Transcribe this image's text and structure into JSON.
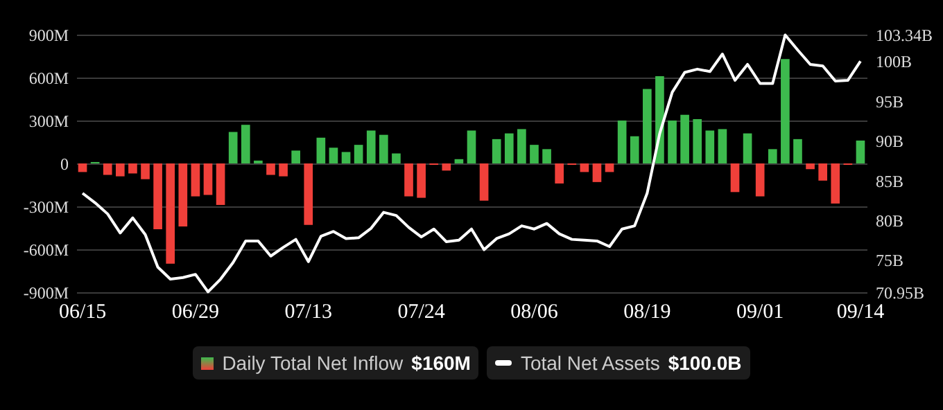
{
  "chart_data": {
    "type": "bar",
    "categories": [
      "06/15",
      null,
      null,
      null,
      null,
      null,
      null,
      null,
      null,
      "06/29",
      null,
      null,
      null,
      null,
      null,
      null,
      null,
      null,
      "07/13",
      null,
      null,
      null,
      null,
      null,
      null,
      null,
      null,
      "07/24",
      null,
      null,
      null,
      null,
      null,
      null,
      null,
      null,
      "08/06",
      null,
      null,
      null,
      null,
      null,
      null,
      null,
      null,
      "08/19",
      null,
      null,
      null,
      null,
      null,
      null,
      null,
      null,
      "09/01",
      null,
      null,
      null,
      null,
      null,
      null,
      null,
      "09/14"
    ],
    "series": [
      {
        "name": "Daily Total Net Inflow $160M",
        "colors": [
          "#f0403a",
          "#3dba4e",
          "#f0403a",
          "#f0403a",
          "#f0403a",
          "#f0403a",
          "#f0403a",
          "#f0403a",
          "#f0403a",
          "#f0403a",
          "#f0403a",
          "#f0403a",
          "#3dba4e",
          "#3dba4e",
          "#3dba4e",
          "#f0403a",
          "#f0403a",
          "#3dba4e",
          "#f0403a",
          "#3dba4e",
          "#3dba4e",
          "#3dba4e",
          "#3dba4e",
          "#3dba4e",
          "#3dba4e",
          "#3dba4e",
          "#f0403a",
          "#f0403a",
          "#f0403a",
          "#f0403a",
          "#3dba4e",
          "#3dba4e",
          "#f0403a",
          "#3dba4e",
          "#3dba4e",
          "#3dba4e",
          "#3dba4e",
          "#3dba4e",
          "#f0403a",
          "#f0403a",
          "#f0403a",
          "#f0403a",
          "#f0403a",
          "#3dba4e",
          "#3dba4e",
          "#3dba4e",
          "#3dba4e",
          "#3dba4e",
          "#3dba4e",
          "#3dba4e",
          "#3dba4e",
          "#3dba4e",
          "#f0403a",
          "#3dba4e",
          "#f0403a",
          "#3dba4e",
          "#3dba4e",
          "#3dba4e",
          "#f0403a",
          "#f0403a",
          "#f0403a",
          "#f0403a",
          "#3dba4e"
        ],
        "values": [
          -60,
          10,
          -80,
          -90,
          -70,
          -110,
          -460,
          -700,
          -440,
          -230,
          -220,
          -290,
          220,
          270,
          20,
          -80,
          -90,
          90,
          -430,
          180,
          110,
          80,
          130,
          230,
          200,
          70,
          -230,
          -240,
          -10,
          -50,
          30,
          230,
          -260,
          170,
          210,
          240,
          130,
          100,
          -140,
          -10,
          -60,
          -130,
          -60,
          300,
          190,
          520,
          610,
          300,
          340,
          310,
          230,
          240,
          -200,
          210,
          -230,
          100,
          730,
          170,
          -40,
          -120,
          -280,
          -10,
          160
        ]
      },
      {
        "name": "Total Net Assets $100.0B",
        "type": "line",
        "axis": "y2",
        "color": "#ffffff",
        "values": [
          83.4,
          82.2,
          80.8,
          78.4,
          80.3,
          78.2,
          74.1,
          72.6,
          72.8,
          73.2,
          71.0,
          72.6,
          74.7,
          77.4,
          77.4,
          75.5,
          76.6,
          77.6,
          74.8,
          78.0,
          78.6,
          77.7,
          77.8,
          79.0,
          81.0,
          80.6,
          79.1,
          77.9,
          78.9,
          77.3,
          77.5,
          78.9,
          76.3,
          77.7,
          78.3,
          79.3,
          78.9,
          79.6,
          78.3,
          77.6,
          77.5,
          77.4,
          76.7,
          78.9,
          79.3,
          83.4,
          90.9,
          96.1,
          98.6,
          99.0,
          98.7,
          100.9,
          97.6,
          99.6,
          97.2,
          97.2,
          103.3,
          101.4,
          99.6,
          99.4,
          97.5,
          97.6,
          100.0
        ]
      }
    ],
    "ylim": [
      -900,
      900
    ],
    "yticks": [
      {
        "value": -900,
        "label": "-900M"
      },
      {
        "value": -600,
        "label": "-600M"
      },
      {
        "value": -300,
        "label": "-300M"
      },
      0,
      {
        "value": 300,
        "label": "300M"
      },
      {
        "value": 600,
        "label": "600M"
      },
      {
        "value": 900,
        "label": "900M"
      }
    ],
    "y2lim": [
      70.95,
      103.34
    ],
    "y2ticks": [
      {
        "value": 70.95,
        "label": "70.95B"
      },
      {
        "value": 75,
        "label": "75B"
      },
      {
        "value": 80,
        "label": "80B"
      },
      {
        "value": 85,
        "label": "85B"
      },
      {
        "value": 90,
        "label": "90B"
      },
      {
        "value": 95,
        "label": "95B"
      },
      {
        "value": 100,
        "label": "100B"
      },
      {
        "value": 103.34,
        "label": "103.34B"
      }
    ],
    "grid": "y",
    "legend": "bottom"
  }
}
